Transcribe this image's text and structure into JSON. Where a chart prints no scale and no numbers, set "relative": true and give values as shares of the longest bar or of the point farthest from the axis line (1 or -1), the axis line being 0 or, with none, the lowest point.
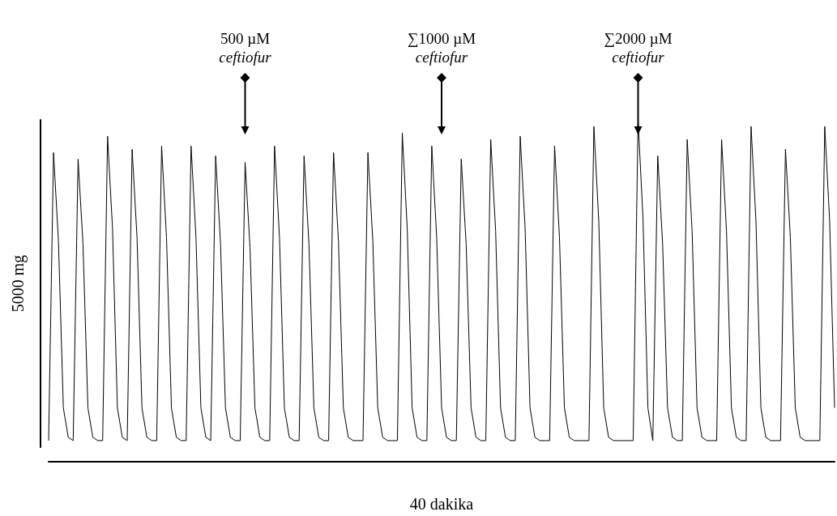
{
  "chart_data": {
    "type": "line",
    "relative": true,
    "xlabel": "40 dakika",
    "ylabel": "5000 mg",
    "color": "#000000",
    "line_style": "solid",
    "categories": [
      null,
      null,
      null,
      null,
      null,
      null,
      null,
      null,
      null,
      null,
      null,
      null,
      null,
      null,
      null,
      null,
      null,
      null,
      null,
      null,
      null,
      null,
      null,
      null,
      null,
      null,
      null,
      null,
      null,
      null,
      null,
      null,
      null,
      null,
      null,
      null,
      null,
      null,
      null,
      null,
      null,
      null,
      null,
      null,
      null,
      null,
      null,
      null,
      null,
      null,
      null,
      null,
      null,
      null,
      null,
      null,
      null,
      null,
      null,
      null,
      null,
      null,
      null,
      null,
      null,
      null,
      null,
      null,
      null,
      null,
      null,
      null,
      null,
      null,
      null,
      null,
      null,
      null,
      null,
      null,
      null,
      null,
      null,
      null,
      null,
      null,
      null,
      null,
      null,
      null,
      null,
      null,
      null,
      null,
      null,
      null,
      null,
      null,
      null,
      null,
      null,
      null,
      null,
      null,
      null,
      null,
      null,
      null,
      null,
      null,
      null,
      null,
      null,
      null,
      null,
      null,
      null,
      null,
      null,
      null,
      null,
      null,
      null,
      null,
      null,
      null,
      null,
      null,
      null,
      null,
      null,
      null,
      null,
      null,
      null,
      null,
      null,
      null,
      null,
      null,
      null,
      null,
      null,
      null,
      null,
      null,
      null,
      null,
      null,
      null,
      null,
      null,
      null,
      null,
      null,
      null,
      null,
      null,
      null,
      null,
      null
    ],
    "values": [
      0.02,
      0.9,
      0.63,
      0.12,
      0.03,
      0.02,
      0.88,
      0.62,
      0.12,
      0.03,
      0.02,
      0.02,
      0.95,
      0.67,
      0.12,
      0.03,
      0.02,
      0.91,
      0.64,
      0.12,
      0.03,
      0.02,
      0.02,
      0.92,
      0.64,
      0.12,
      0.03,
      0.02,
      0.02,
      0.92,
      0.64,
      0.12,
      0.03,
      0.02,
      0.89,
      0.62,
      0.12,
      0.03,
      0.02,
      0.02,
      0.87,
      0.61,
      0.12,
      0.03,
      0.02,
      0.02,
      0.92,
      0.64,
      0.12,
      0.03,
      0.02,
      0.02,
      0.89,
      0.62,
      0.12,
      0.03,
      0.02,
      0.02,
      0.9,
      0.63,
      0.12,
      0.03,
      0.02,
      0.02,
      0.02,
      0.9,
      0.63,
      0.12,
      0.03,
      0.02,
      0.02,
      0.02,
      0.96,
      0.67,
      0.12,
      0.03,
      0.02,
      0.02,
      0.92,
      0.64,
      0.12,
      0.03,
      0.02,
      0.02,
      0.88,
      0.62,
      0.12,
      0.03,
      0.02,
      0.02,
      0.94,
      0.66,
      0.12,
      0.03,
      0.02,
      0.02,
      0.95,
      0.67,
      0.12,
      0.03,
      0.02,
      0.02,
      0.02,
      0.92,
      0.64,
      0.12,
      0.03,
      0.02,
      0.02,
      0.02,
      0.02,
      0.98,
      0.69,
      0.12,
      0.03,
      0.02,
      0.02,
      0.02,
      0.02,
      0.02,
      1,
      0.7,
      0.12,
      0.02,
      0.89,
      0.62,
      0.12,
      0.03,
      0.02,
      0.02,
      0.94,
      0.66,
      0.12,
      0.03,
      0.02,
      0.02,
      0.02,
      0.94,
      0.66,
      0.12,
      0.03,
      0.02,
      0.02,
      0.98,
      0.69,
      0.12,
      0.03,
      0.02,
      0.02,
      0.02,
      0.91,
      0.64,
      0.12,
      0.03,
      0.02,
      0.02,
      0.02,
      0.02,
      0.98,
      0.69,
      0.12
    ],
    "annotations": [
      "500 µM\nceftiofur",
      "∑1000 µM\nceftiofur",
      "∑2000 µM\nceftiofur"
    ]
  }
}
